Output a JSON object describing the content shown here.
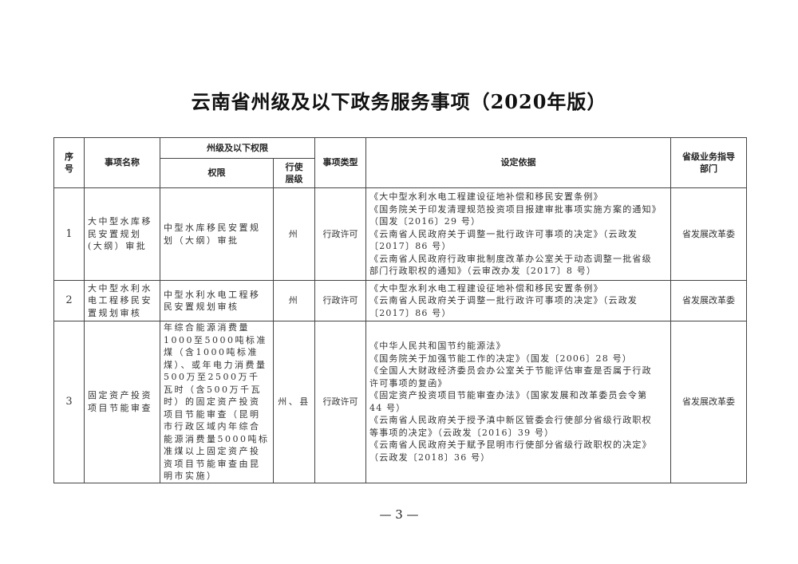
{
  "title": "云南省州级及以下政务服务事项（2020年版）",
  "headers": {
    "seq": "序号",
    "name": "事项名称",
    "scope_group": "州级及以下权限",
    "authority": "权限",
    "level": "行使层级",
    "type": "事项类型",
    "basis": "设定依据",
    "dept": "省级业务指导部门"
  },
  "rows": [
    {
      "seq": "1",
      "name": "大中型水库移民安置规划(大纲）审批",
      "authority": "中型水库移民安置规划（大纲）审批",
      "level": "州",
      "type": "行政许可",
      "basis": [
        "《大中型水利水电工程建设征地补偿和移民安置条例》",
        "《国务院关于印发清理规范投资项目报建审批事项实施方案的通知》",
        "（国发〔2016〕29 号）",
        "《云南省人民政府关于调整一批行政许可事项的决定》（云政发",
        "〔2017〕86 号）",
        "《云南省人民政府行政审批制度改革办公室关于动态调整一批省级",
        "部门行政职权的通知》（云审改办发〔2017〕8 号）"
      ],
      "dept": "省发展改革委"
    },
    {
      "seq": "2",
      "name": "大中型水利水电工程移民安置规划审核",
      "authority": "中型水利水电工程移民安置规划审核",
      "level": "州",
      "type": "行政许可",
      "basis": [
        "《大中型水利水电工程建设征地补偿和移民安置条例》",
        "《云南省人民政府关于调整一批行政许可事项的决定》（云政发",
        "〔2017〕86 号）"
      ],
      "dept": "省发展改革委"
    },
    {
      "seq": "3",
      "name": "固定资产投资项目节能审查",
      "authority": "年综合能源消费量1000至5000吨标准煤（含1000吨标准煤）、或年电力消费量500万至2500万千瓦时（含500万千瓦时）的固定资产投资项目节能审查（昆明市行政区域内年综合能源消费量5000吨标准煤以上固定资产投资项目节能审查由昆明市实施）",
      "level": "州、县",
      "type": "行政许可",
      "basis": [
        "《中华人民共和国节约能源法》",
        "《国务院关于加强节能工作的决定》（国发〔2006〕28 号）",
        "《全国人大财政经济委员会办公室关于节能评估审查是否属于行政",
        "许可事项的复函》",
        "《固定资产投资项目节能审查办法》（国家发展和改革委员会令第",
        "44 号）",
        "《云南省人民政府关于授予滇中新区管委会行使部分省级行政职权",
        "等事项的决定》（云政发〔2016〕39 号）",
        "《云南省人民政府关于赋予昆明市行使部分省级行政职权的决定》",
        "（云政发〔2018〕36 号）"
      ],
      "dept": "省发展改革委"
    }
  ],
  "page_number": "— 3 —"
}
